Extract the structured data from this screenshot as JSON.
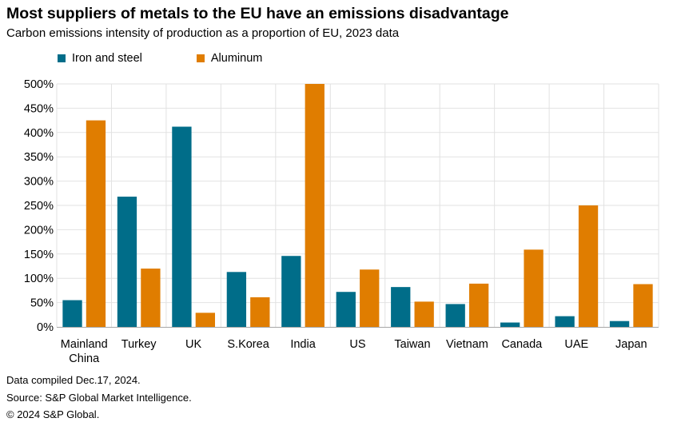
{
  "title": "Most suppliers of metals to the EU have an emissions disadvantage",
  "subtitle": "Carbon emissions intensity of production as a proportion of EU, 2023 data",
  "colors": {
    "iron": "#006d89",
    "aluminum": "#e07d00",
    "grid": "#e2e2e2",
    "axis": "#a6a6a6"
  },
  "chart_data": {
    "type": "bar",
    "categories": [
      "Mainland China",
      "Turkey",
      "UK",
      "S.Korea",
      "India",
      "US",
      "Taiwan",
      "Vietnam",
      "Canada",
      "UAE",
      "Japan"
    ],
    "series": [
      {
        "name": "Iron and steel",
        "values": [
          55,
          268,
          412,
          113,
          146,
          72,
          82,
          47,
          9,
          22,
          12
        ]
      },
      {
        "name": "Aluminum",
        "values": [
          425,
          120,
          29,
          61,
          500,
          118,
          52,
          89,
          159,
          250,
          88
        ]
      }
    ],
    "ylim": [
      0,
      500
    ],
    "yticks": [
      "0%",
      "50%",
      "100%",
      "150%",
      "200%",
      "250%",
      "300%",
      "350%",
      "400%",
      "450%",
      "500%"
    ],
    "grid": true,
    "legend": "top-left"
  },
  "footer": {
    "line1": "Data compiled Dec.17, 2024.",
    "line2": "Source: S&P Global Market Intelligence.",
    "line3": "© 2024 S&P Global."
  }
}
